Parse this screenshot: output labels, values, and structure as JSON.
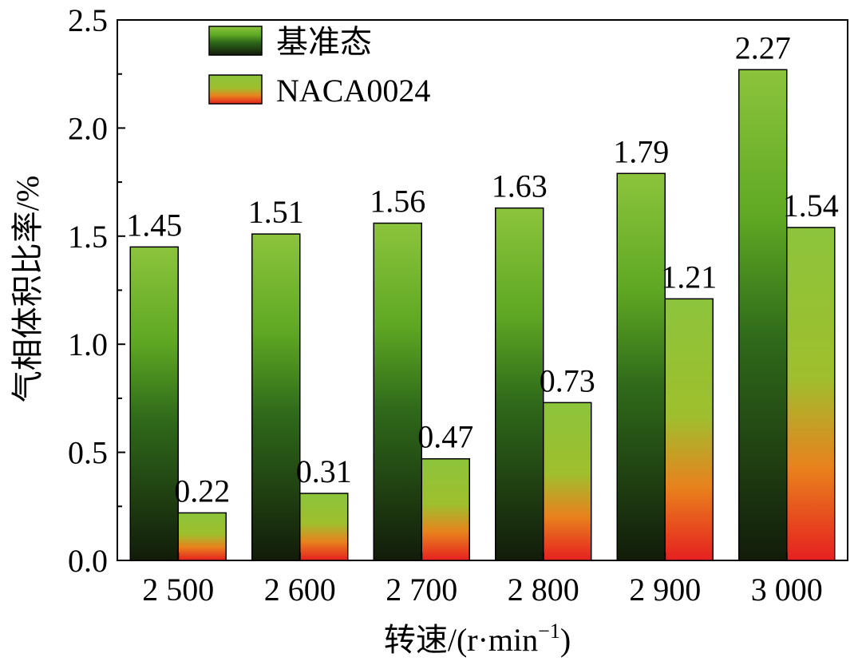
{
  "chart_data": {
    "type": "bar",
    "categories": [
      "2 500",
      "2 600",
      "2 700",
      "2 800",
      "2 900",
      "3 000"
    ],
    "series": [
      {
        "name": "基准态",
        "values": [
          1.45,
          1.51,
          1.56,
          1.63,
          1.79,
          2.27
        ]
      },
      {
        "name": "NACA0024",
        "values": [
          0.22,
          0.31,
          0.47,
          0.73,
          1.21,
          1.54
        ]
      }
    ],
    "data_labels": [
      [
        "1.45",
        "1.51",
        "1.56",
        "1.63",
        "1.79",
        "2.27"
      ],
      [
        "0.22",
        "0.31",
        "0.47",
        "0.73",
        "1.21",
        "1.54"
      ]
    ],
    "y_ticks": [
      "0.0",
      "0.5",
      "1.0",
      "1.5",
      "2.0",
      "2.5"
    ],
    "ylim": [
      0,
      2.5
    ],
    "ylabel": "气相体积比率/%",
    "xlabel": {
      "main": "转速/(r·min",
      "superscript": "−1",
      "close": ")"
    },
    "legend_position": "top-left",
    "grid": false,
    "colors": {
      "base_top": "#8cc43c",
      "base_mid": "#5fa823",
      "base_bottom": "#121c0a",
      "naca_top": "#8cc43c",
      "naca_mid": "#9fbf2c",
      "naca_orange": "#e8821c",
      "naca_bottom": "#e62020"
    }
  }
}
